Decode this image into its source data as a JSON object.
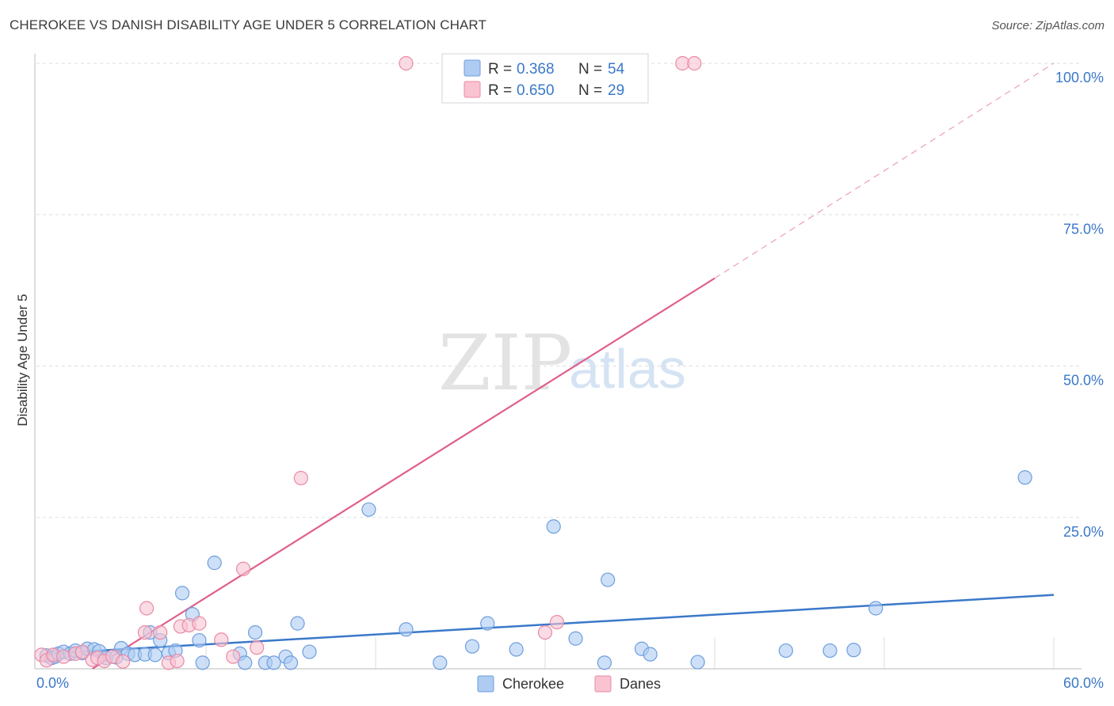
{
  "title": "CHEROKEE VS DANISH DISABILITY AGE UNDER 5 CORRELATION CHART",
  "source": "Source: ZipAtlas.com",
  "watermark": {
    "zip": "ZIP",
    "atlas": "atlas"
  },
  "colors": {
    "cherokee_fill": "#aecbf1",
    "cherokee_stroke": "#6d9ede",
    "cherokee_line": "#3a78c9",
    "danes_fill": "#f9c3d2",
    "danes_stroke": "#e88aa6",
    "danes_line": "#e0608a",
    "grid": "#dddddd",
    "tick_text": "#3a78c9"
  },
  "stats": [
    {
      "series": "Cherokee",
      "r_label": "R =",
      "r_value": "0.368",
      "n_label": "N =",
      "n_value": "54"
    },
    {
      "series": "Danes",
      "r_label": "R =",
      "r_value": "0.650",
      "n_label": "N =",
      "n_value": "29"
    }
  ],
  "legend": [
    {
      "name": "Cherokee"
    },
    {
      "name": "Danes"
    }
  ],
  "chart_data": {
    "type": "scatter",
    "title": "CHEROKEE VS DANISH DISABILITY AGE UNDER 5 CORRELATION CHART",
    "xlabel": "",
    "ylabel": "Disability Age Under 5",
    "xlim": [
      0,
      60
    ],
    "ylim": [
      0,
      100
    ],
    "x_tick_labels": [
      "0.0%",
      "60.0%"
    ],
    "y_ticks": [
      25,
      50,
      75,
      100
    ],
    "y_tick_labels": [
      "25.0%",
      "50.0%",
      "75.0%",
      "100.0%"
    ],
    "legend_position": "bottom-center",
    "grid": true,
    "series": [
      {
        "name": "Cherokee",
        "points": [
          [
            0.6,
            2.2
          ],
          [
            0.9,
            1.8
          ],
          [
            1.1,
            2.0
          ],
          [
            1.3,
            2.5
          ],
          [
            1.6,
            2.8
          ],
          [
            2.0,
            2.5
          ],
          [
            2.3,
            3.0
          ],
          [
            2.7,
            2.6
          ],
          [
            3.0,
            3.3
          ],
          [
            3.4,
            3.2
          ],
          [
            3.7,
            2.9
          ],
          [
            4.1,
            1.8
          ],
          [
            4.7,
            1.9
          ],
          [
            5.0,
            3.4
          ],
          [
            5.4,
            2.5
          ],
          [
            5.8,
            2.3
          ],
          [
            6.4,
            2.4
          ],
          [
            6.7,
            6.0
          ],
          [
            7.0,
            2.3
          ],
          [
            7.3,
            4.7
          ],
          [
            7.8,
            2.6
          ],
          [
            8.2,
            3.0
          ],
          [
            8.6,
            12.5
          ],
          [
            9.2,
            9.0
          ],
          [
            9.6,
            4.7
          ],
          [
            9.8,
            1.0
          ],
          [
            10.5,
            17.5
          ],
          [
            12.0,
            2.5
          ],
          [
            12.3,
            1.0
          ],
          [
            12.9,
            6.0
          ],
          [
            13.5,
            1.0
          ],
          [
            14.0,
            1.0
          ],
          [
            14.7,
            2.0
          ],
          [
            15.0,
            1.0
          ],
          [
            15.4,
            7.5
          ],
          [
            16.1,
            2.8
          ],
          [
            19.6,
            26.3
          ],
          [
            21.8,
            6.5
          ],
          [
            23.8,
            1.0
          ],
          [
            25.7,
            3.7
          ],
          [
            26.6,
            7.5
          ],
          [
            28.3,
            3.2
          ],
          [
            30.5,
            23.5
          ],
          [
            31.8,
            5.0
          ],
          [
            33.5,
            1.0
          ],
          [
            33.7,
            14.7
          ],
          [
            35.7,
            3.3
          ],
          [
            36.2,
            2.4
          ],
          [
            39.0,
            1.1
          ],
          [
            44.2,
            3.0
          ],
          [
            46.8,
            3.0
          ],
          [
            48.2,
            3.1
          ],
          [
            49.5,
            10.0
          ],
          [
            58.3,
            31.6
          ]
        ],
        "trend": {
          "x0": 0.6,
          "y0": 2.5,
          "x1": 60,
          "y1": 12.2
        }
      },
      {
        "name": "Danes",
        "points": [
          [
            0.3,
            2.3
          ],
          [
            0.6,
            1.4
          ],
          [
            1.0,
            2.3
          ],
          [
            1.6,
            2.0
          ],
          [
            2.3,
            2.5
          ],
          [
            2.7,
            2.8
          ],
          [
            3.3,
            1.5
          ],
          [
            3.6,
            1.8
          ],
          [
            4.0,
            1.3
          ],
          [
            4.5,
            2.0
          ],
          [
            5.1,
            1.2
          ],
          [
            6.4,
            6.0
          ],
          [
            6.5,
            10.0
          ],
          [
            7.3,
            6.0
          ],
          [
            7.8,
            1.0
          ],
          [
            8.3,
            1.3
          ],
          [
            8.5,
            7.0
          ],
          [
            9.0,
            7.2
          ],
          [
            9.6,
            7.5
          ],
          [
            10.9,
            4.8
          ],
          [
            11.6,
            2.0
          ],
          [
            12.2,
            16.5
          ],
          [
            13.0,
            3.5
          ],
          [
            15.6,
            31.5
          ],
          [
            21.8,
            100.0
          ],
          [
            30.0,
            6.0
          ],
          [
            30.7,
            7.7
          ],
          [
            38.1,
            100.0
          ],
          [
            38.8,
            100.0
          ]
        ],
        "trend": {
          "x0": 3.3,
          "y0": 0.0,
          "x1": 40.0,
          "y1": 64.5,
          "dashed_to_x": 60,
          "dashed_to_y": 100.0
        }
      }
    ]
  }
}
